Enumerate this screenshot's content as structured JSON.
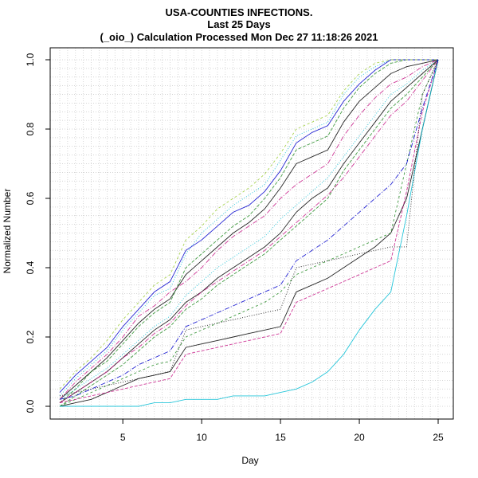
{
  "chart_data": {
    "type": "line",
    "title": "USA-COUNTIES INFECTIONS.",
    "subtitle": "Last 25 Days",
    "subtitle2": "(_oio_) Calculation Processed  Mon Dec 27 11:18:26 2021",
    "xlabel": "Day",
    "ylabel": "Normalized Number",
    "xlim": [
      1,
      25
    ],
    "ylim": [
      0,
      1
    ],
    "xticks": [
      "5",
      "10",
      "15",
      "20",
      "25"
    ],
    "yticks": [
      "0.0",
      "0.2",
      "0.4",
      "0.6",
      "0.8",
      "1.0"
    ],
    "grid": true,
    "x": [
      1,
      2,
      3,
      4,
      5,
      6,
      7,
      8,
      9,
      10,
      11,
      12,
      13,
      14,
      15,
      16,
      17,
      18,
      19,
      20,
      21,
      22,
      23,
      24,
      25
    ],
    "series": [
      {
        "color": "#000000",
        "values": [
          0.02,
          0.06,
          0.1,
          0.14,
          0.19,
          0.24,
          0.28,
          0.31,
          0.38,
          0.42,
          0.46,
          0.5,
          0.53,
          0.57,
          0.63,
          0.7,
          0.72,
          0.74,
          0.82,
          0.88,
          0.92,
          0.96,
          0.98,
          0.99,
          1.0
        ]
      },
      {
        "color": "#228b22",
        "values": [
          0.01,
          0.05,
          0.1,
          0.13,
          0.18,
          0.23,
          0.27,
          0.3,
          0.4,
          0.44,
          0.48,
          0.52,
          0.55,
          0.6,
          0.66,
          0.74,
          0.76,
          0.78,
          0.86,
          0.92,
          0.96,
          0.99,
          1.0,
          1.0,
          1.0
        ]
      },
      {
        "color": "#00bcd4",
        "values": [
          0.03,
          0.08,
          0.12,
          0.16,
          0.22,
          0.27,
          0.32,
          0.34,
          0.44,
          0.5,
          0.54,
          0.58,
          0.61,
          0.64,
          0.71,
          0.78,
          0.8,
          0.82,
          0.9,
          0.95,
          0.98,
          1.0,
          1.0,
          1.0,
          1.0
        ]
      },
      {
        "color": "#c71585",
        "values": [
          0.02,
          0.07,
          0.11,
          0.15,
          0.2,
          0.26,
          0.29,
          0.33,
          0.36,
          0.4,
          0.45,
          0.49,
          0.52,
          0.55,
          0.6,
          0.64,
          0.67,
          0.7,
          0.78,
          0.84,
          0.89,
          0.93,
          0.95,
          0.98,
          1.0
        ]
      },
      {
        "color": "#0000cd",
        "values": [
          0.04,
          0.09,
          0.13,
          0.17,
          0.23,
          0.28,
          0.33,
          0.36,
          0.45,
          0.48,
          0.52,
          0.56,
          0.58,
          0.62,
          0.68,
          0.76,
          0.79,
          0.81,
          0.88,
          0.93,
          0.97,
          1.0,
          1.0,
          1.0,
          1.0
        ]
      },
      {
        "color": "#9acd32",
        "values": [
          0.05,
          0.1,
          0.14,
          0.19,
          0.25,
          0.3,
          0.35,
          0.38,
          0.48,
          0.52,
          0.57,
          0.6,
          0.63,
          0.67,
          0.73,
          0.8,
          0.82,
          0.84,
          0.91,
          0.96,
          0.99,
          1.0,
          1.0,
          1.0,
          1.0
        ]
      },
      {
        "color": "#000000",
        "values": [
          0.01,
          0.04,
          0.07,
          0.1,
          0.14,
          0.18,
          0.22,
          0.25,
          0.3,
          0.33,
          0.37,
          0.4,
          0.43,
          0.46,
          0.5,
          0.56,
          0.6,
          0.63,
          0.7,
          0.76,
          0.82,
          0.88,
          0.92,
          0.96,
          1.0
        ]
      },
      {
        "color": "#228b22",
        "values": [
          0.0,
          0.03,
          0.06,
          0.09,
          0.12,
          0.16,
          0.2,
          0.23,
          0.28,
          0.31,
          0.35,
          0.38,
          0.41,
          0.44,
          0.48,
          0.52,
          0.56,
          0.6,
          0.68,
          0.74,
          0.8,
          0.86,
          0.9,
          0.95,
          1.0
        ]
      },
      {
        "color": "#00bcd4",
        "values": [
          0.02,
          0.05,
          0.08,
          0.11,
          0.15,
          0.19,
          0.23,
          0.26,
          0.32,
          0.36,
          0.4,
          0.43,
          0.46,
          0.49,
          0.54,
          0.58,
          0.62,
          0.66,
          0.72,
          0.78,
          0.84,
          0.9,
          0.93,
          0.97,
          1.0
        ]
      },
      {
        "color": "#c71585",
        "values": [
          0.01,
          0.04,
          0.07,
          0.1,
          0.14,
          0.17,
          0.21,
          0.24,
          0.29,
          0.33,
          0.36,
          0.39,
          0.42,
          0.45,
          0.49,
          0.53,
          0.57,
          0.61,
          0.66,
          0.72,
          0.78,
          0.84,
          0.88,
          0.94,
          1.0
        ]
      },
      {
        "color": "#000000",
        "values": [
          0.0,
          0.01,
          0.02,
          0.04,
          0.06,
          0.08,
          0.09,
          0.1,
          0.17,
          0.18,
          0.19,
          0.2,
          0.21,
          0.22,
          0.23,
          0.33,
          0.35,
          0.37,
          0.4,
          0.43,
          0.46,
          0.5,
          0.6,
          0.8,
          1.0
        ]
      },
      {
        "color": "#228b22",
        "values": [
          0.0,
          0.02,
          0.04,
          0.06,
          0.08,
          0.1,
          0.12,
          0.13,
          0.2,
          0.22,
          0.24,
          0.26,
          0.28,
          0.3,
          0.33,
          0.38,
          0.4,
          0.42,
          0.44,
          0.46,
          0.48,
          0.5,
          0.7,
          0.9,
          1.0
        ]
      },
      {
        "color": "#00bcd4",
        "values": [
          0.0,
          0.0,
          0.0,
          0.0,
          0.0,
          0.0,
          0.01,
          0.01,
          0.02,
          0.02,
          0.02,
          0.03,
          0.03,
          0.03,
          0.04,
          0.05,
          0.07,
          0.1,
          0.15,
          0.22,
          0.28,
          0.33,
          0.55,
          0.8,
          1.0
        ]
      },
      {
        "color": "#c71585",
        "values": [
          0.01,
          0.02,
          0.03,
          0.04,
          0.05,
          0.06,
          0.07,
          0.08,
          0.15,
          0.16,
          0.17,
          0.18,
          0.19,
          0.2,
          0.21,
          0.3,
          0.32,
          0.34,
          0.36,
          0.38,
          0.4,
          0.42,
          0.62,
          0.85,
          1.0
        ]
      },
      {
        "color": "#000000",
        "values": [
          0.03,
          0.04,
          0.05,
          0.06,
          0.07,
          0.08,
          0.09,
          0.1,
          0.22,
          0.23,
          0.24,
          0.25,
          0.26,
          0.27,
          0.28,
          0.4,
          0.41,
          0.42,
          0.43,
          0.44,
          0.45,
          0.46,
          0.46,
          0.9,
          1.0
        ]
      },
      {
        "color": "#0000cd",
        "values": [
          0.02,
          0.03,
          0.05,
          0.07,
          0.09,
          0.12,
          0.14,
          0.16,
          0.23,
          0.25,
          0.27,
          0.29,
          0.31,
          0.33,
          0.35,
          0.42,
          0.45,
          0.48,
          0.52,
          0.56,
          0.6,
          0.64,
          0.7,
          0.86,
          1.0
        ]
      }
    ]
  }
}
